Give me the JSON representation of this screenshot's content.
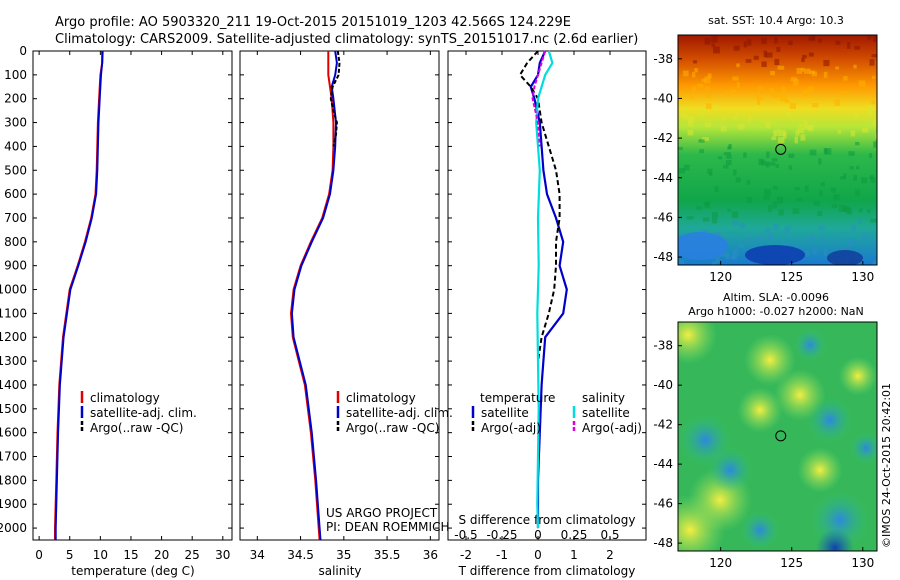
{
  "header": {
    "line1": "Argo profile: AO 5903320_211 19-Oct-2015 20151019_1203 42.566S 124.229E",
    "line2": "Climatology: CARS2009. Satellite-adjusted climatology: synTS_20151017.nc (2.6d earlier)"
  },
  "credit": "©IMOS 24-Oct-2015 20:42:01",
  "depth_ticks": [
    "0",
    "100",
    "200",
    "300",
    "400",
    "500",
    "600",
    "700",
    "800",
    "900",
    "1000",
    "1100",
    "1200",
    "1300",
    "1400",
    "1500",
    "1600",
    "1700",
    "1800",
    "1900",
    "2000"
  ],
  "colors": {
    "climatology": "#e00000",
    "satellite": "#0000cc",
    "argo": "#000000",
    "salinity_sat": "#00dddd",
    "salinity_argo": "#dd00dd"
  },
  "chart_data": [
    {
      "type": "line",
      "panel": "temperature",
      "xlabel": "temperature (deg C)",
      "ylim": [
        2050,
        0
      ],
      "xlim": [
        -1,
        31.5
      ],
      "xticks": [
        "0",
        "5",
        "10",
        "15",
        "20",
        "25",
        "30"
      ],
      "legend": [
        "climatology",
        "satellite-adj. clim.",
        "Argo(..raw -QC)"
      ],
      "series": [
        {
          "name": "climatology",
          "depth": [
            0,
            50,
            100,
            200,
            300,
            400,
            500,
            600,
            700,
            800,
            900,
            1000,
            1200,
            1400,
            1600,
            1800,
            2000,
            2050
          ],
          "values": [
            10.4,
            10.3,
            10.0,
            9.8,
            9.6,
            9.5,
            9.4,
            9.2,
            8.5,
            7.5,
            6.3,
            5.0,
            3.9,
            3.3,
            3.0,
            2.8,
            2.6,
            2.6
          ]
        },
        {
          "name": "satellite-adj. clim.",
          "depth": [
            0,
            50,
            100,
            200,
            300,
            400,
            500,
            600,
            700,
            800,
            900,
            1000,
            1200,
            1400,
            1600,
            1800,
            2000,
            2050
          ],
          "values": [
            10.3,
            10.3,
            10.1,
            9.9,
            9.7,
            9.6,
            9.5,
            9.3,
            8.6,
            7.6,
            6.4,
            5.1,
            4.0,
            3.4,
            3.1,
            2.9,
            2.7,
            2.7
          ]
        }
      ]
    },
    {
      "type": "line",
      "panel": "salinity",
      "xlabel": "salinity",
      "xlim": [
        33.8,
        36.1
      ],
      "xticks": [
        "34",
        "34.5",
        "35",
        "35.5",
        "36"
      ],
      "legend": [
        "climatology",
        "satellite-adj. clim.",
        "Argo(..raw -QC)"
      ],
      "annotation": [
        "US ARGO PROJECT",
        "PI: DEAN ROEMMICH"
      ],
      "series": [
        {
          "name": "climatology",
          "depth": [
            0,
            100,
            200,
            300,
            400,
            500,
            600,
            700,
            800,
            900,
            1000,
            1100,
            1200,
            1300,
            1400,
            1600,
            1800,
            2000,
            2050
          ],
          "values": [
            34.82,
            34.82,
            34.86,
            34.88,
            34.88,
            34.87,
            34.83,
            34.75,
            34.62,
            34.5,
            34.42,
            34.39,
            34.41,
            34.48,
            34.55,
            34.62,
            34.67,
            34.71,
            34.72
          ]
        },
        {
          "name": "satellite-adj. clim.",
          "depth": [
            0,
            50,
            100,
            150,
            200,
            300,
            400,
            500,
            600,
            700,
            800,
            900,
            1000,
            1100,
            1200,
            1300,
            1400,
            1600,
            1800,
            2000,
            2050
          ],
          "values": [
            34.9,
            34.92,
            34.9,
            34.86,
            34.88,
            34.91,
            34.9,
            34.88,
            34.84,
            34.76,
            34.63,
            34.51,
            34.43,
            34.4,
            34.42,
            34.49,
            34.56,
            34.63,
            34.68,
            34.72,
            34.73
          ]
        },
        {
          "name": "Argo",
          "depth": [
            0,
            50,
            100,
            150,
            200,
            250,
            300,
            350,
            400
          ],
          "values": [
            34.93,
            34.95,
            34.94,
            34.87,
            34.85,
            34.88,
            34.92,
            34.91,
            34.88
          ]
        }
      ]
    },
    {
      "type": "line",
      "panel": "difference",
      "xlabel": "T difference from climatology",
      "xlabel2": "S difference from climatology",
      "xlim": [
        -2.5,
        3.0
      ],
      "xticks": [
        "-2",
        "-1",
        "0",
        "1",
        "2"
      ],
      "s_ticks": [
        "-0.5",
        "-0.25",
        "0",
        "0.25",
        "0.5"
      ],
      "legend_titles": [
        "temperature",
        "salinity"
      ],
      "legend": [
        "satellite",
        "Argo(-adj)",
        "satellite",
        "Argo(-adj)"
      ],
      "series": [
        {
          "name": "temperature satellite",
          "depth": [
            0,
            50,
            100,
            150,
            200,
            300,
            400,
            500,
            600,
            700,
            800,
            900,
            1000,
            1100,
            1200,
            1400,
            1600,
            1800,
            2000
          ],
          "values": [
            0.2,
            0.05,
            0.0,
            -0.2,
            -0.1,
            0.05,
            0.1,
            0.15,
            0.25,
            0.5,
            0.7,
            0.6,
            0.8,
            0.7,
            0.2,
            0.1,
            0.05,
            0.0,
            0.0
          ]
        },
        {
          "name": "temperature Argo",
          "depth": [
            0,
            50,
            100,
            150,
            200,
            300,
            400,
            500,
            600,
            700,
            800,
            900,
            1000,
            1100,
            1200,
            1300
          ],
          "values": [
            0.0,
            -0.3,
            -0.5,
            -0.2,
            0.0,
            0.1,
            0.3,
            0.5,
            0.6,
            0.6,
            0.5,
            0.5,
            0.45,
            0.3,
            0.1,
            0.0
          ]
        },
        {
          "name": "salinity satellite",
          "depth": [
            0,
            50,
            100,
            150,
            200,
            300,
            400,
            500,
            700,
            900,
            1100,
            1300,
            1500,
            1700,
            1900,
            2000
          ],
          "values": [
            0.3,
            0.4,
            0.2,
            0.1,
            0.0,
            -0.05,
            0.0,
            0.05,
            0.0,
            0.02,
            -0.02,
            0.0,
            0.02,
            0.0,
            -0.02,
            0.0
          ]
        },
        {
          "name": "salinity Argo",
          "depth": [
            0,
            50,
            100,
            150,
            200,
            300,
            400
          ],
          "values": [
            0.2,
            0.1,
            0.0,
            -0.1,
            -0.15,
            0.0,
            0.05
          ]
        }
      ]
    },
    {
      "type": "heatmap",
      "panel": "sst_map",
      "title": "sat. SST: 10.4  Argo: 10.3",
      "xticks": [
        "120",
        "125",
        "130"
      ],
      "yticks": [
        "-38",
        "-40",
        "-42",
        "-44",
        "-46",
        "-48"
      ],
      "marker": {
        "lon": 124.229,
        "lat": -42.566
      }
    },
    {
      "type": "heatmap",
      "panel": "sla_map",
      "title": "Altim. SLA: -0.0096",
      "subtitle": "Argo h1000: -0.027  h2000: NaN",
      "xticks": [
        "120",
        "125",
        "130"
      ],
      "yticks": [
        "-38",
        "-40",
        "-42",
        "-44",
        "-46",
        "-48"
      ],
      "marker": {
        "lon": 124.229,
        "lat": -42.566
      }
    }
  ]
}
